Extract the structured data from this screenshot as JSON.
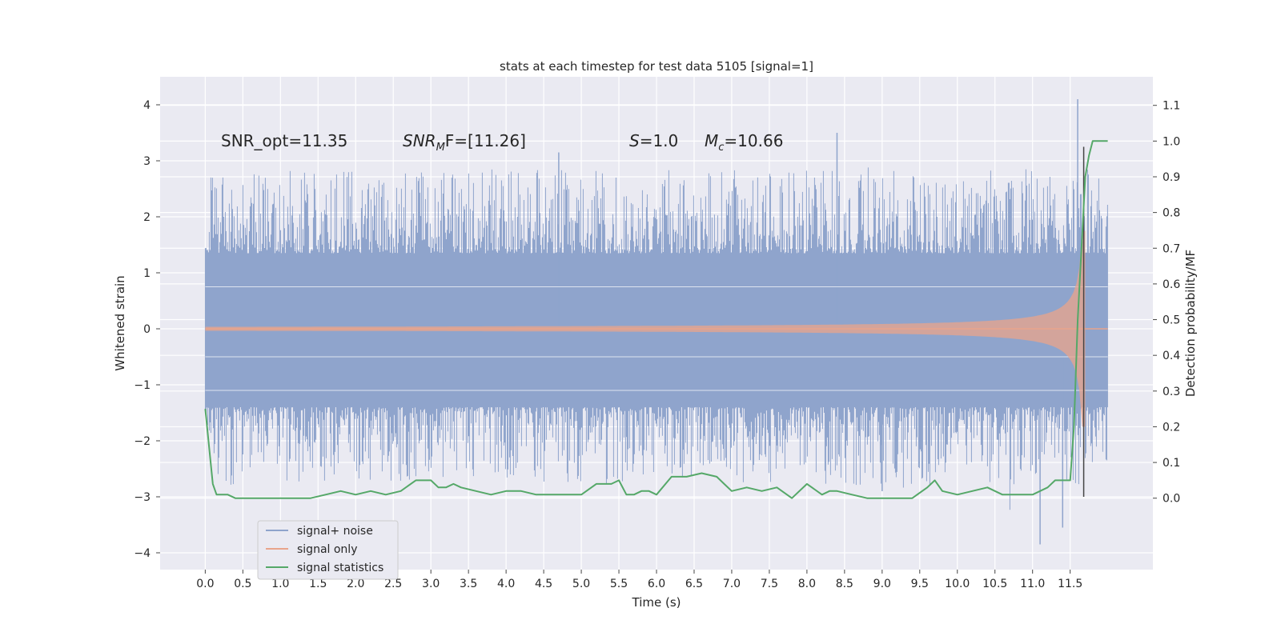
{
  "chart_data": {
    "type": "line",
    "title": "stats at each timestep for test data 5105 [signal=1]",
    "xlabel": "Time (s)",
    "ylabel_left": "Whitened strain",
    "ylabel_right": "Detection probability/MF",
    "xlim": [
      -0.6,
      12.6
    ],
    "ylim_left": [
      -4.3,
      4.5
    ],
    "ylim_right": [
      -0.2,
      1.18
    ],
    "x_ticks": [
      0.0,
      0.5,
      1.0,
      1.5,
      2.0,
      2.5,
      3.0,
      3.5,
      4.0,
      4.5,
      5.0,
      5.5,
      6.0,
      6.5,
      7.0,
      7.5,
      8.0,
      8.5,
      9.0,
      9.5,
      10.0,
      10.5,
      11.0,
      11.5
    ],
    "x_tick_labels": [
      "0.0",
      "0.5",
      "1.0",
      "1.5",
      "2.0",
      "2.5",
      "3.0",
      "3.5",
      "4.0",
      "4.5",
      "5.0",
      "5.5",
      "6.0",
      "6.5",
      "7.0",
      "7.5",
      "8.0",
      "8.5",
      "9.0",
      "9.5",
      "10.0",
      "10.5",
      "11.0",
      "11.5"
    ],
    "y_left_ticks": [
      4,
      3,
      2,
      1,
      0,
      -1,
      -2,
      -3,
      -4
    ],
    "y_left_tick_labels": [
      "4",
      "3",
      "2",
      "1",
      "0",
      "−1",
      "−2",
      "−3",
      "−4"
    ],
    "y_right_ticks": [
      1.1,
      1.0,
      0.9,
      0.8,
      0.7,
      0.6,
      0.5,
      0.4,
      0.3,
      0.2,
      0.1,
      0.0
    ],
    "y_right_tick_labels": [
      "1.1",
      "1.0",
      "0.9",
      "0.8",
      "0.7",
      "0.6",
      "0.5",
      "0.4",
      "0.3",
      "0.2",
      "0.1",
      "0.0"
    ],
    "grid": true,
    "legend_position": "lower-left",
    "annotations": {
      "snr_opt": "SNR_opt=11.35",
      "snr_mf_sym": "SNR",
      "snr_mf_sub": "M",
      "snr_mf_rest": "F=[11.26]",
      "s_sym": "S",
      "s_rest": "=1.0",
      "mc_sym": "M",
      "mc_sub": "c",
      "mc_rest": "=10.66"
    },
    "series": [
      {
        "name": "signal+ noise",
        "color": "#8fa4cc",
        "axis": "left",
        "description_envelope": {
          "x_range": [
            0.0,
            12.0
          ],
          "dense_band": [
            -1.4,
            1.35
          ],
          "peak_max": 4.1,
          "peak_min": -3.85
        }
      },
      {
        "name": "signal only",
        "color": "#e9a48b",
        "axis": "left",
        "chirp": {
          "start": 0.0,
          "end": 11.7,
          "amp_start": 0.02,
          "amp_end": 1.75
        }
      },
      {
        "name": "signal statistics",
        "color": "#55a868",
        "axis": "right",
        "x": [
          0.0,
          0.1,
          0.15,
          0.2,
          0.3,
          0.4,
          0.5,
          0.6,
          0.8,
          1.0,
          1.2,
          1.4,
          1.6,
          1.8,
          2.0,
          2.2,
          2.4,
          2.6,
          2.8,
          2.9,
          3.0,
          3.1,
          3.2,
          3.3,
          3.4,
          3.6,
          3.8,
          4.0,
          4.2,
          4.4,
          4.6,
          4.8,
          5.0,
          5.2,
          5.4,
          5.5,
          5.6,
          5.7,
          5.8,
          5.9,
          6.0,
          6.2,
          6.4,
          6.6,
          6.8,
          6.9,
          7.0,
          7.2,
          7.4,
          7.6,
          7.8,
          8.0,
          8.2,
          8.3,
          8.4,
          8.6,
          8.8,
          9.0,
          9.2,
          9.4,
          9.6,
          9.7,
          9.8,
          10.0,
          10.2,
          10.4,
          10.6,
          10.8,
          11.0,
          11.2,
          11.3,
          11.4,
          11.5,
          11.55,
          11.6,
          11.65,
          11.7,
          11.75,
          11.8,
          11.9,
          12.0
        ],
        "values": [
          0.25,
          0.04,
          0.01,
          0.01,
          0.01,
          0.0,
          0.0,
          0.0,
          0.0,
          0.0,
          0.0,
          0.0,
          0.01,
          0.02,
          0.01,
          0.02,
          0.01,
          0.02,
          0.05,
          0.05,
          0.05,
          0.03,
          0.03,
          0.04,
          0.03,
          0.02,
          0.01,
          0.02,
          0.02,
          0.01,
          0.01,
          0.01,
          0.01,
          0.04,
          0.04,
          0.05,
          0.01,
          0.01,
          0.02,
          0.02,
          0.01,
          0.06,
          0.06,
          0.07,
          0.06,
          0.04,
          0.02,
          0.03,
          0.02,
          0.03,
          0.0,
          0.04,
          0.01,
          0.02,
          0.02,
          0.01,
          0.0,
          0.0,
          0.0,
          0.0,
          0.03,
          0.05,
          0.02,
          0.01,
          0.02,
          0.03,
          0.01,
          0.01,
          0.01,
          0.03,
          0.05,
          0.05,
          0.05,
          0.2,
          0.5,
          0.7,
          0.9,
          0.96,
          1.0,
          1.0,
          1.0
        ]
      }
    ],
    "vertical_marker": {
      "x": 11.68,
      "color": "#444444"
    }
  }
}
